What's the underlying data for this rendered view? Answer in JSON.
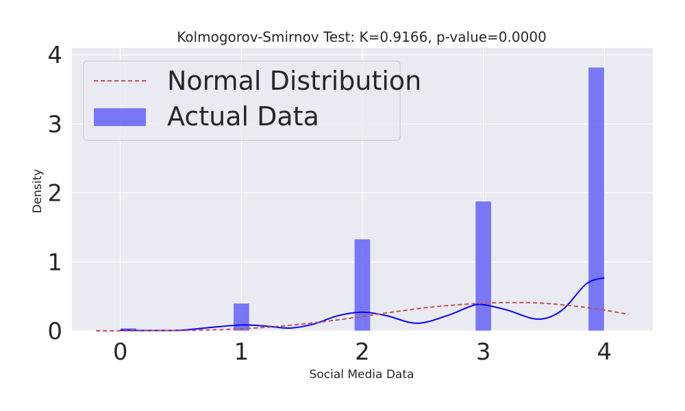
{
  "chart_data": {
    "type": "bar",
    "title": "Kolmogorov-Smirnov Test: K=0.9166, p-value=0.0000",
    "xlabel": "Social Media Data",
    "ylabel": "Density",
    "xlim": [
      -0.4,
      4.4
    ],
    "ylim": [
      0,
      4.1
    ],
    "xticks": [
      0,
      1,
      2,
      3,
      4
    ],
    "yticks": [
      0,
      1,
      2,
      3,
      4
    ],
    "grid": true,
    "legend_position": "top-left",
    "colors": {
      "background": "#eaeaf2",
      "grid": "#ffffff",
      "bars": "#6b6bf5",
      "kde": "#0000ff",
      "normal": "#c44e52"
    },
    "legend": [
      {
        "label": "Normal Distribution",
        "style": "dashed-line"
      },
      {
        "label": "Actual Data",
        "style": "patch"
      }
    ],
    "bars": {
      "name": "Actual Data",
      "bin_width": 0.133,
      "x": [
        0.067,
        1.0,
        2.0,
        3.0,
        3.933
      ],
      "values": [
        0.04,
        0.4,
        1.33,
        1.88,
        3.82
      ]
    },
    "kde_line": {
      "x": [
        0,
        0.25,
        0.5,
        0.75,
        1.0,
        1.2,
        1.4,
        1.6,
        1.8,
        2.0,
        2.2,
        2.45,
        2.7,
        2.9,
        3.0,
        3.2,
        3.45,
        3.65,
        3.85,
        4.0
      ],
      "y": [
        0.01,
        0.005,
        0.01,
        0.05,
        0.085,
        0.07,
        0.04,
        0.1,
        0.22,
        0.27,
        0.22,
        0.11,
        0.22,
        0.36,
        0.38,
        0.3,
        0.17,
        0.3,
        0.68,
        0.77
      ]
    },
    "normal_line": {
      "name": "Normal Distribution",
      "x": [
        -0.2,
        0.2,
        0.6,
        1.0,
        1.4,
        1.8,
        2.2,
        2.6,
        3.0,
        3.25,
        3.5,
        3.8,
        4.0,
        4.2
      ],
      "y": [
        0.0,
        0.002,
        0.008,
        0.03,
        0.08,
        0.16,
        0.26,
        0.35,
        0.4,
        0.41,
        0.4,
        0.35,
        0.3,
        0.24
      ]
    }
  }
}
